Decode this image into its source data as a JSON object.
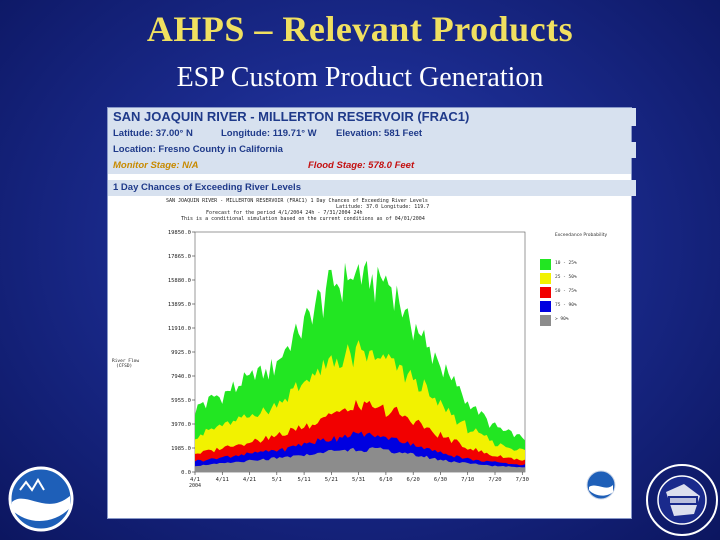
{
  "slide": {
    "title": "AHPS – Relevant Products",
    "subtitle": "ESP Custom Product Generation"
  },
  "header": {
    "station": "SAN JOAQUIN RIVER - MILLERTON RESERVOIR (FRAC1)",
    "latitude": "Latitude: 37.00° N",
    "longitude": "Longitude: 119.71° W",
    "elevation": "Elevation: 581 Feet",
    "location": "Location: Fresno County in California",
    "monitor_stage": "Monitor Stage: N/A",
    "flood_stage": "Flood Stage: 578.0 Feet",
    "product": "1 Day Chances of Exceeding River Levels"
  },
  "plot_info": [
    "SAN JOAQUIN RIVER - MILLERTON RESERVOIR (FRAC1)   1 Day Chances of Exceeding River Levels",
    "Latitude: 37.0   Longitude: 119.7",
    "Forecast for the period 4/1/2004 24h - 7/31/2004 24h",
    "This is a conditional simulation based on the current conditions as of 04/01/2004"
  ],
  "legend": {
    "title": "Exceedance Probability",
    "items": [
      {
        "label": "10 - 25%",
        "color": "#22e622"
      },
      {
        "label": "25 - 50%",
        "color": "#f2f200"
      },
      {
        "label": "50 - 75%",
        "color": "#f20000"
      },
      {
        "label": "75 - 90%",
        "color": "#0000e0"
      },
      {
        "label": "> 90%",
        "color": "#8c8c8c"
      }
    ]
  },
  "chart_data": {
    "type": "area",
    "title": "1 Day Chances of Exceeding River Levels",
    "ylabel": "River Flow (CFSD)",
    "ylabel_lines": [
      "River Flow",
      "(CFSD)"
    ],
    "xlabel": "",
    "ylim": [
      0,
      19850
    ],
    "y_ticks": [
      "19850.0",
      "17865.0",
      "15880.0",
      "13895.0",
      "11910.0",
      "9925.0",
      "7940.0",
      "5955.0",
      "3970.0",
      "1985.0",
      "0.0"
    ],
    "x_ticks": [
      "4/1",
      "4/11",
      "4/21",
      "5/1",
      "5/11",
      "5/21",
      "5/31",
      "6/10",
      "6/20",
      "6/30",
      "7/10",
      "7/20",
      "7/30"
    ],
    "x_start_label": "2004",
    "x_positions": [
      0,
      10,
      20,
      30,
      40,
      50,
      60,
      70,
      80,
      90,
      100,
      110,
      120
    ],
    "n_days": 122,
    "series": [
      {
        "name": "> 90%",
        "color": "#8c8c8c",
        "values": [
          500,
          700,
          900,
          1100,
          1400,
          1700,
          1900,
          1800,
          1400,
          1000,
          700,
          500,
          400
        ]
      },
      {
        "name": "75 - 90%",
        "color": "#0000e0",
        "values": [
          900,
          1200,
          1500,
          1800,
          2300,
          2800,
          3100,
          2900,
          2300,
          1600,
          1100,
          800,
          600
        ]
      },
      {
        "name": "50 - 75%",
        "color": "#f20000",
        "values": [
          1500,
          2000,
          2500,
          3000,
          3800,
          4800,
          5400,
          5200,
          4200,
          3000,
          2000,
          1300,
          1000
        ]
      },
      {
        "name": "25 - 50%",
        "color": "#f2f200",
        "values": [
          3000,
          3800,
          4600,
          5600,
          7300,
          9000,
          9800,
          9300,
          7700,
          5500,
          3600,
          2400,
          1800
        ]
      },
      {
        "name": "10 - 25%",
        "color": "#22e622",
        "values": [
          5200,
          6500,
          7600,
          9000,
          12000,
          15400,
          16500,
          15600,
          12300,
          8800,
          5800,
          3700,
          2800
        ]
      }
    ]
  }
}
